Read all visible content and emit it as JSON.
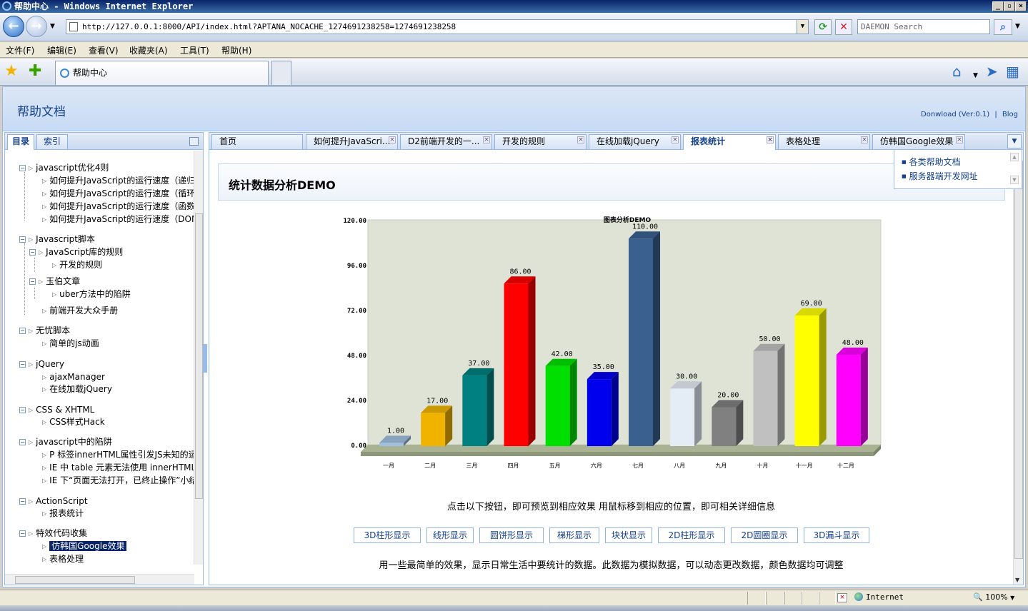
{
  "window": {
    "title": "帮助中心 - Windows Internet Explorer",
    "address": "http://127.0.0.1:8000/API/index.html?APTANA_NOCACHE_1274691238258=1274691238258",
    "search_placeholder": "DAEMON Search",
    "menu": [
      "文件(F)",
      "编辑(E)",
      "查看(V)",
      "收藏夹(A)",
      "工具(T)",
      "帮助(H)"
    ],
    "tab_title": "帮助中心",
    "status_zone": "Internet",
    "zoom": "100%"
  },
  "header": {
    "title": "帮助文档",
    "download": "Donwload (Ver:0.1)",
    "sep": "|",
    "blog": "Blog"
  },
  "left_tabs": [
    "目录",
    "索引"
  ],
  "tree": {
    "g1": "javascript优化4则",
    "g1_items": [
      "如何提升JavaScript的运行速度（递归篇）",
      "如何提升JavaScript的运行速度（循环篇）",
      "如何提升JavaScript的运行速度（函数篇）",
      "如何提升JavaScript的运行速度（DOM篇）"
    ],
    "g2": "Javascript脚本",
    "g2_sub1": "JavaScript库的规则",
    "g2_sub1_item": "开发的规则",
    "g2_sub2": "玉伯文章",
    "g2_sub2_item": "uber方法中的陷阱",
    "g2_item": "前端开发大众手册",
    "g3": "无忧脚本",
    "g3_item": "简单的js动画",
    "g4": "jQuery",
    "g4_items": [
      "ajaxManager",
      "在线加载jQuery"
    ],
    "g5": "CSS & XHTML",
    "g5_item": "CSS样式Hack",
    "g6": "javascript中的陷阱",
    "g6_items": [
      "P 标签innerHTML属性引发JS未知的运行时错误",
      "IE 中  table 元素无法使用  innerHTML，",
      "IE 下“页面无法打开，已终止操作”小结"
    ],
    "g7": "ActionScript",
    "g7_item": "报表统计",
    "g8": "特效代码收集",
    "g8_items": [
      "仿韩国Google效果",
      "表格处理"
    ]
  },
  "content_tabs": [
    "首页",
    "如何提升JavaScri...",
    "D2前端开发的一...",
    "开发的规则",
    "在线加载jQuery",
    "报表统计",
    "表格处理",
    "仿韩国Google效果"
  ],
  "popup_items": [
    "各类帮助文档",
    "服务器端开发网址"
  ],
  "demo": {
    "title": "统计数据分析DEMO",
    "hint": "点击以下按钮，即可预览到相应效果 用鼠标移到相应的位置，即可相关详细信息",
    "buttons": [
      "3D柱形显示",
      "线形显示",
      "圆饼形显示",
      "梯形显示",
      "块状显示",
      "2D柱形显示",
      "2D圆圈显示",
      "3D漏斗显示"
    ],
    "desc": "用一些最简单的效果，显示日常生活中要统计的数据。此数据为模拟数据，可以动态更改数据，颜色数据均可调整"
  },
  "chart_data": {
    "type": "bar",
    "title": "图表分析DEMO",
    "categories": [
      "一月",
      "二月",
      "三月",
      "四月",
      "五月",
      "六月",
      "七月",
      "八月",
      "九月",
      "十月",
      "十一月",
      "十二月"
    ],
    "values": [
      1,
      17,
      37,
      86,
      42,
      35,
      110,
      30,
      20,
      50,
      69,
      48
    ],
    "value_labels": [
      "1.00",
      "17.00",
      "37.00",
      "86.00",
      "42.00",
      "35.00",
      "110.00",
      "30.00",
      "20.00",
      "50.00",
      "69.00",
      "48.00"
    ],
    "colors": [
      "#a0c0e0",
      "#f0b400",
      "#008080",
      "#ff0000",
      "#00e000",
      "#0000ee",
      "#3a6090",
      "#e4ecf6",
      "#808080",
      "#c0c0c0",
      "#ffff00",
      "#ff00ff"
    ],
    "yticks": [
      "0.00",
      "24.00",
      "48.00",
      "72.00",
      "96.00",
      "120.00"
    ],
    "ylim": [
      0,
      120
    ],
    "xlabel": "",
    "ylabel": "",
    "grid": false,
    "style": "3d"
  }
}
